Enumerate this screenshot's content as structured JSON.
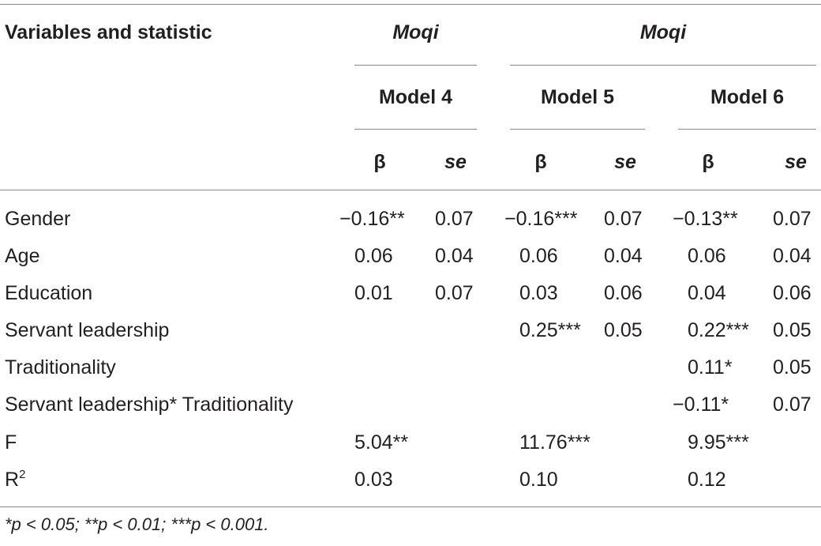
{
  "table": {
    "header": {
      "variables_label": "Variables and statistic",
      "group1_label": "Moqi",
      "group2_label": "Moqi",
      "models": [
        "Model 4",
        "Model 5",
        "Model 6"
      ],
      "beta": "β",
      "se": "se"
    },
    "rows": [
      {
        "label": "Gender",
        "cells": [
          "−0.16**",
          "0.07",
          "−0.16***",
          "0.07",
          "−0.13**",
          "0.07"
        ]
      },
      {
        "label": "Age",
        "cells": [
          "0.06",
          "0.04",
          "0.06",
          "0.04",
          "0.06",
          "0.04"
        ]
      },
      {
        "label": "Education",
        "cells": [
          "0.01",
          "0.07",
          "0.03",
          "0.06",
          "0.04",
          "0.06"
        ]
      },
      {
        "label": "Servant leadership",
        "cells": [
          "",
          "",
          "0.25***",
          "0.05",
          "0.22***",
          "0.05"
        ]
      },
      {
        "label": "Traditionality",
        "cells": [
          "",
          "",
          "",
          "",
          "0.11*",
          "0.05"
        ]
      },
      {
        "label": "Servant leadership* Traditionality",
        "cells": [
          "",
          "",
          "",
          "",
          "−0.11*",
          "0.07"
        ]
      },
      {
        "label": "F",
        "cells": [
          "5.04**",
          "",
          "11.76***",
          "",
          "9.95***",
          ""
        ]
      },
      {
        "label": "R",
        "label_sup": "2",
        "cells": [
          "0.03",
          "",
          "0.10",
          "",
          "0.12",
          ""
        ]
      }
    ],
    "footnote": "*p < 0.05; **p < 0.01; ***p < 0.001."
  }
}
